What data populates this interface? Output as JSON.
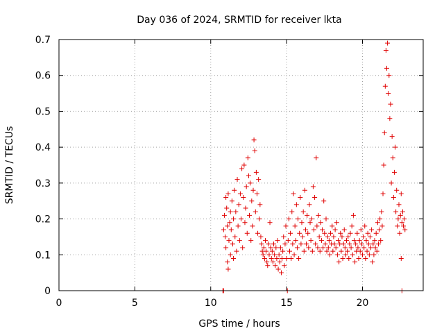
{
  "chart_data": {
    "type": "scatter",
    "title": "Day 036 of 2024, SRMTID for receiver lkta",
    "xlabel": "GPS time / hours",
    "ylabel": "SRMTID / TECUs",
    "xlim": [
      0,
      24
    ],
    "ylim": [
      0,
      0.7
    ],
    "xticks": [
      0,
      5,
      10,
      15,
      20
    ],
    "yticks": [
      0,
      0.1,
      0.2,
      0.3,
      0.4,
      0.5,
      0.6,
      0.7
    ],
    "xtick_labels": [
      "0",
      "5",
      "10",
      "15",
      "20"
    ],
    "ytick_labels": [
      "0",
      "0.1",
      "0.2",
      "0.3",
      "0.4",
      "0.5",
      "0.6",
      "0.7"
    ],
    "grid": true,
    "marker": "+",
    "marker_color": "#e00000",
    "series": [
      {
        "name": "SRMTID",
        "points": [
          [
            10.8,
            0.0
          ],
          [
            10.85,
            0.0
          ],
          [
            10.85,
            0.17
          ],
          [
            10.9,
            0.21
          ],
          [
            10.95,
            0.15
          ],
          [
            11.0,
            0.26
          ],
          [
            11.0,
            0.12
          ],
          [
            11.05,
            0.23
          ],
          [
            11.1,
            0.18
          ],
          [
            11.1,
            0.08
          ],
          [
            11.15,
            0.27
          ],
          [
            11.15,
            0.06
          ],
          [
            11.2,
            0.14
          ],
          [
            11.25,
            0.19
          ],
          [
            11.3,
            0.22
          ],
          [
            11.3,
            0.1
          ],
          [
            11.35,
            0.17
          ],
          [
            11.4,
            0.25
          ],
          [
            11.45,
            0.13
          ],
          [
            11.5,
            0.2
          ],
          [
            11.5,
            0.09
          ],
          [
            11.55,
            0.28
          ],
          [
            11.6,
            0.15
          ],
          [
            11.65,
            0.22
          ],
          [
            11.7,
            0.11
          ],
          [
            11.75,
            0.31
          ],
          [
            11.8,
            0.18
          ],
          [
            11.85,
            0.24
          ],
          [
            11.9,
            0.14
          ],
          [
            11.95,
            0.27
          ],
          [
            12.0,
            0.2
          ],
          [
            12.05,
            0.34
          ],
          [
            12.1,
            0.12
          ],
          [
            12.15,
            0.26
          ],
          [
            12.2,
            0.35
          ],
          [
            12.25,
            0.19
          ],
          [
            12.3,
            0.23
          ],
          [
            12.35,
            0.29
          ],
          [
            12.4,
            0.16
          ],
          [
            12.45,
            0.37
          ],
          [
            12.5,
            0.32
          ],
          [
            12.55,
            0.21
          ],
          [
            12.6,
            0.3
          ],
          [
            12.65,
            0.14
          ],
          [
            12.7,
            0.25
          ],
          [
            12.75,
            0.18
          ],
          [
            12.8,
            0.28
          ],
          [
            12.85,
            0.42
          ],
          [
            12.9,
            0.39
          ],
          [
            12.95,
            0.22
          ],
          [
            13.0,
            0.33
          ],
          [
            13.05,
            0.27
          ],
          [
            13.1,
            0.16
          ],
          [
            13.15,
            0.31
          ],
          [
            13.2,
            0.2
          ],
          [
            13.25,
            0.24
          ],
          [
            13.3,
            0.15
          ],
          [
            13.35,
            0.13
          ],
          [
            13.4,
            0.11
          ],
          [
            13.45,
            0.1
          ],
          [
            13.5,
            0.12
          ],
          [
            13.55,
            0.09
          ],
          [
            13.6,
            0.14
          ],
          [
            13.65,
            0.11
          ],
          [
            13.7,
            0.08
          ],
          [
            13.75,
            0.07
          ],
          [
            13.8,
            0.13
          ],
          [
            13.85,
            0.1
          ],
          [
            13.9,
            0.19
          ],
          [
            13.95,
            0.12
          ],
          [
            14.0,
            0.09
          ],
          [
            14.05,
            0.11
          ],
          [
            14.1,
            0.08
          ],
          [
            14.15,
            0.13
          ],
          [
            14.2,
            0.1
          ],
          [
            14.25,
            0.07
          ],
          [
            14.3,
            0.12
          ],
          [
            14.35,
            0.09
          ],
          [
            14.4,
            0.14
          ],
          [
            14.45,
            0.06
          ],
          [
            14.5,
            0.1
          ],
          [
            14.55,
            0.08
          ],
          [
            14.6,
            0.12
          ],
          [
            14.65,
            0.05
          ],
          [
            14.7,
            0.09
          ],
          [
            14.75,
            0.11
          ],
          [
            14.8,
            0.15
          ],
          [
            14.85,
            0.07
          ],
          [
            14.9,
            0.13
          ],
          [
            14.95,
            0.18
          ],
          [
            15.0,
            0.09
          ],
          [
            15.05,
            0.0
          ],
          [
            15.1,
            0.14
          ],
          [
            15.15,
            0.2
          ],
          [
            15.2,
            0.11
          ],
          [
            15.25,
            0.16
          ],
          [
            15.3,
            0.09
          ],
          [
            15.35,
            0.22
          ],
          [
            15.4,
            0.13
          ],
          [
            15.45,
            0.27
          ],
          [
            15.5,
            0.1
          ],
          [
            15.55,
            0.18
          ],
          [
            15.6,
            0.14
          ],
          [
            15.65,
            0.24
          ],
          [
            15.7,
            0.12
          ],
          [
            15.75,
            0.2
          ],
          [
            15.8,
            0.09
          ],
          [
            15.85,
            0.16
          ],
          [
            15.9,
            0.26
          ],
          [
            15.95,
            0.13
          ],
          [
            16.0,
            0.19
          ],
          [
            16.05,
            0.15
          ],
          [
            16.1,
            0.22
          ],
          [
            16.15,
            0.11
          ],
          [
            16.2,
            0.28
          ],
          [
            16.25,
            0.17
          ],
          [
            16.3,
            0.13
          ],
          [
            16.35,
            0.21
          ],
          [
            16.4,
            0.16
          ],
          [
            16.45,
            0.12
          ],
          [
            16.5,
            0.24
          ],
          [
            16.55,
            0.19
          ],
          [
            16.6,
            0.14
          ],
          [
            16.65,
            0.2
          ],
          [
            16.7,
            0.11
          ],
          [
            16.75,
            0.29
          ],
          [
            16.8,
            0.17
          ],
          [
            16.85,
            0.26
          ],
          [
            16.9,
            0.13
          ],
          [
            16.95,
            0.37
          ],
          [
            17.0,
            0.18
          ],
          [
            17.05,
            0.12
          ],
          [
            17.1,
            0.21
          ],
          [
            17.15,
            0.15
          ],
          [
            17.2,
            0.11
          ],
          [
            17.25,
            0.19
          ],
          [
            17.3,
            0.14
          ],
          [
            17.35,
            0.17
          ],
          [
            17.4,
            0.12
          ],
          [
            17.45,
            0.25
          ],
          [
            17.5,
            0.16
          ],
          [
            17.55,
            0.13
          ],
          [
            17.6,
            0.2
          ],
          [
            17.65,
            0.11
          ],
          [
            17.7,
            0.15
          ],
          [
            17.75,
            0.12
          ],
          [
            17.8,
            0.14
          ],
          [
            17.85,
            0.1
          ],
          [
            17.9,
            0.16
          ],
          [
            17.95,
            0.13
          ],
          [
            18.0,
            0.18
          ],
          [
            18.05,
            0.11
          ],
          [
            18.1,
            0.15
          ],
          [
            18.15,
            0.13
          ],
          [
            18.2,
            0.17
          ],
          [
            18.25,
            0.12
          ],
          [
            18.3,
            0.19
          ],
          [
            18.35,
            0.1
          ],
          [
            18.4,
            0.14
          ],
          [
            18.45,
            0.08
          ],
          [
            18.5,
            0.13
          ],
          [
            18.55,
            0.16
          ],
          [
            18.6,
            0.11
          ],
          [
            18.65,
            0.15
          ],
          [
            18.7,
            0.09
          ],
          [
            18.75,
            0.13
          ],
          [
            18.8,
            0.17
          ],
          [
            18.85,
            0.12
          ],
          [
            18.9,
            0.1
          ],
          [
            18.95,
            0.14
          ],
          [
            19.0,
            0.11
          ],
          [
            19.05,
            0.15
          ],
          [
            19.1,
            0.09
          ],
          [
            19.15,
            0.13
          ],
          [
            19.2,
            0.16
          ],
          [
            19.25,
            0.12
          ],
          [
            19.3,
            0.18
          ],
          [
            19.35,
            0.1
          ],
          [
            19.4,
            0.21
          ],
          [
            19.45,
            0.14
          ],
          [
            19.5,
            0.08
          ],
          [
            19.55,
            0.13
          ],
          [
            19.6,
            0.11
          ],
          [
            19.65,
            0.16
          ],
          [
            19.7,
            0.12
          ],
          [
            19.75,
            0.09
          ],
          [
            19.8,
            0.14
          ],
          [
            19.85,
            0.11
          ],
          [
            19.9,
            0.17
          ],
          [
            19.95,
            0.13
          ],
          [
            20.0,
            0.1
          ],
          [
            20.05,
            0.15
          ],
          [
            20.1,
            0.12
          ],
          [
            20.15,
            0.18
          ],
          [
            20.2,
            0.09
          ],
          [
            20.25,
            0.14
          ],
          [
            20.3,
            0.11
          ],
          [
            20.35,
            0.16
          ],
          [
            20.4,
            0.13
          ],
          [
            20.45,
            0.1
          ],
          [
            20.5,
            0.15
          ],
          [
            20.55,
            0.12
          ],
          [
            20.6,
            0.17
          ],
          [
            20.65,
            0.08
          ],
          [
            20.7,
            0.13
          ],
          [
            20.75,
            0.1
          ],
          [
            20.8,
            0.14
          ],
          [
            20.85,
            0.12
          ],
          [
            20.9,
            0.16
          ],
          [
            20.95,
            0.11
          ],
          [
            21.0,
            0.19
          ],
          [
            21.05,
            0.13
          ],
          [
            21.1,
            0.17
          ],
          [
            21.15,
            0.2
          ],
          [
            21.2,
            0.14
          ],
          [
            21.25,
            0.22
          ],
          [
            21.3,
            0.18
          ],
          [
            21.35,
            0.27
          ],
          [
            21.4,
            0.35
          ],
          [
            21.45,
            0.44
          ],
          [
            21.5,
            0.57
          ],
          [
            21.55,
            0.67
          ],
          [
            21.6,
            0.62
          ],
          [
            21.65,
            0.69
          ],
          [
            21.7,
            0.55
          ],
          [
            21.75,
            0.6
          ],
          [
            21.8,
            0.48
          ],
          [
            21.85,
            0.52
          ],
          [
            21.9,
            0.3
          ],
          [
            21.95,
            0.43
          ],
          [
            22.0,
            0.37
          ],
          [
            22.05,
            0.26
          ],
          [
            22.1,
            0.33
          ],
          [
            22.15,
            0.4
          ],
          [
            22.2,
            0.22
          ],
          [
            22.25,
            0.28
          ],
          [
            22.3,
            0.18
          ],
          [
            22.35,
            0.2
          ],
          [
            22.4,
            0.24
          ],
          [
            22.45,
            0.16
          ],
          [
            22.5,
            0.21
          ],
          [
            22.55,
            0.27
          ],
          [
            22.6,
            0.19
          ],
          [
            22.65,
            0.22
          ],
          [
            22.7,
            0.18
          ],
          [
            22.75,
            0.2
          ],
          [
            22.8,
            0.17
          ],
          [
            22.55,
            0.09
          ],
          [
            22.6,
            0.0
          ]
        ]
      }
    ]
  }
}
